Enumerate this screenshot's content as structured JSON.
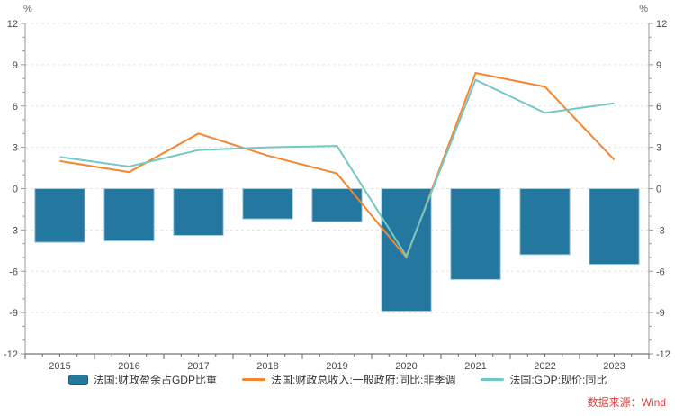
{
  "y_axis_unit_left": "%",
  "y_axis_unit_right": "%",
  "source": "数据来源：Wind",
  "legend": [
    {
      "label": "法国:财政盈余占GDP比重",
      "type": "bar",
      "color": "#2478A0"
    },
    {
      "label": "法国:财政总收入:一般政府:同比:非季调",
      "type": "line",
      "color": "#F5862F"
    },
    {
      "label": "法国:GDP:现价:同比",
      "type": "line",
      "color": "#73C8C3"
    }
  ],
  "chart_data": {
    "type": "combo",
    "title": "",
    "categories": [
      "2015",
      "2016",
      "2017",
      "2018",
      "2019",
      "2020",
      "2021",
      "2022",
      "2023"
    ],
    "series": [
      {
        "name": "法国:财政盈余占GDP比重",
        "type": "bar",
        "color": "#2478A0",
        "border_color": "#A9CFDF",
        "values": [
          -3.9,
          -3.8,
          -3.4,
          -2.2,
          -2.4,
          -8.9,
          -6.6,
          -4.8,
          -5.5
        ]
      },
      {
        "name": "法国:财政总收入:一般政府:同比:非季调",
        "type": "line",
        "color": "#F5862F",
        "values": [
          2.0,
          1.2,
          4.0,
          2.4,
          1.1,
          -5.0,
          8.4,
          7.4,
          2.1
        ]
      },
      {
        "name": "法国:GDP:现价:同比",
        "type": "line",
        "color": "#73C8C3",
        "values": [
          2.3,
          1.6,
          2.8,
          3.0,
          3.1,
          -4.9,
          7.9,
          5.5,
          6.2
        ]
      }
    ],
    "unit": "%",
    "ylim": [
      -12,
      12
    ],
    "ytick_step": 3,
    "yminor_step": 1,
    "x_minor_per_category": 4,
    "grid": true,
    "grid_style": "dashed",
    "legend_position": "bottom",
    "dual_axis": true,
    "source": "数据来源：Wind"
  }
}
